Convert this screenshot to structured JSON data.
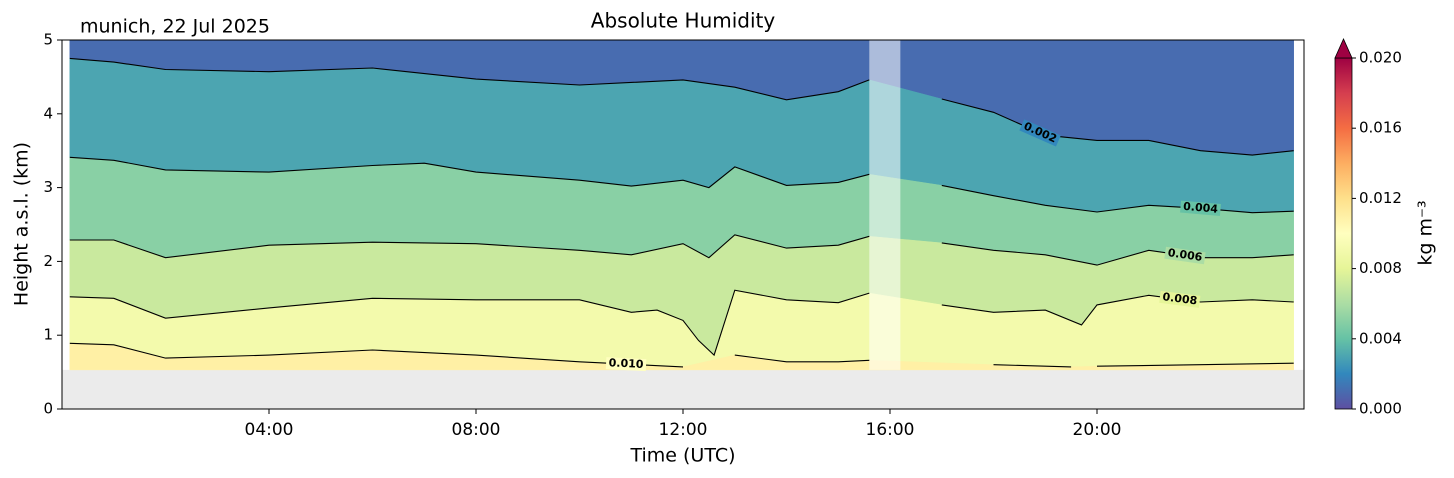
{
  "chart_data": {
    "type": "contour",
    "title": "Absolute Humidity",
    "location_label": "munich, 22 Jul 2025",
    "xlabel": "Time (UTC)",
    "ylabel": "Height a.s.l. (km)",
    "colorbar_label": "kg m⁻³",
    "xlim": [
      0,
      24
    ],
    "xticks": [
      {
        "value": 4,
        "label": "04:00"
      },
      {
        "value": 8,
        "label": "08:00"
      },
      {
        "value": 12,
        "label": "12:00"
      },
      {
        "value": 16,
        "label": "16:00"
      },
      {
        "value": 20,
        "label": "20:00"
      }
    ],
    "ylim": [
      0,
      5
    ],
    "yticks": [
      0,
      1,
      2,
      3,
      4,
      5
    ],
    "clim": [
      0,
      0.02
    ],
    "cticks": [
      {
        "value": 0,
        "label": "0.000"
      },
      {
        "value": 0.004,
        "label": "0.004"
      },
      {
        "value": 0.008,
        "label": "0.008"
      },
      {
        "value": 0.012,
        "label": "0.012"
      },
      {
        "value": 0.016,
        "label": "0.016"
      },
      {
        "value": 0.02,
        "label": "0.020"
      }
    ],
    "colormap": [
      "#5e4fa2",
      "#3288bd",
      "#66c2a5",
      "#abdda4",
      "#e6f598",
      "#ffffbf",
      "#fee08b",
      "#fdae61",
      "#f46d43",
      "#d53e4f",
      "#9e0142"
    ],
    "lowest_height": 0.53,
    "no_data_intervals": [
      [
        15.6,
        16.2
      ]
    ],
    "series": [
      {
        "level": {
          "value": 0.002,
          "label": "0.002"
        },
        "x": [
          0.15,
          1,
          2,
          4,
          6,
          8,
          10,
          12,
          13,
          14,
          15,
          15.6,
          16.2,
          17,
          18,
          19,
          20,
          21,
          22,
          23,
          23.8
        ],
        "values": [
          4.75,
          4.7,
          4.6,
          4.57,
          4.62,
          4.47,
          4.39,
          4.46,
          4.36,
          4.19,
          4.3,
          4.46,
          null,
          4.2,
          4.02,
          3.71,
          3.64,
          3.64,
          3.5,
          3.44,
          3.5
        ]
      },
      {
        "level": {
          "value": 0.004,
          "label": "0.004"
        },
        "x": [
          0.15,
          1,
          2,
          4,
          6,
          7,
          8,
          10,
          11,
          12,
          12.5,
          13,
          14,
          15,
          15.6,
          16.2,
          17,
          18,
          19,
          20,
          21,
          22,
          23,
          23.8
        ],
        "values": [
          3.41,
          3.37,
          3.24,
          3.21,
          3.3,
          3.33,
          3.21,
          3.1,
          3.02,
          3.1,
          3.0,
          3.28,
          3.03,
          3.07,
          3.18,
          null,
          3.03,
          2.89,
          2.76,
          2.67,
          2.76,
          2.72,
          2.66,
          2.68
        ]
      },
      {
        "level": {
          "value": 0.006,
          "label": "0.006"
        },
        "x": [
          0.15,
          1,
          2,
          4,
          6,
          8,
          10,
          11,
          12,
          12.5,
          13,
          14,
          15,
          15.6,
          16.2,
          17,
          18,
          19,
          20,
          21,
          22,
          23,
          23.8
        ],
        "values": [
          2.29,
          2.29,
          2.05,
          2.22,
          2.26,
          2.24,
          2.15,
          2.09,
          2.24,
          2.05,
          2.36,
          2.18,
          2.22,
          2.34,
          null,
          2.25,
          2.15,
          2.09,
          1.95,
          2.15,
          2.05,
          2.05,
          2.09
        ]
      },
      {
        "level": {
          "value": 0.008,
          "label": "0.008"
        },
        "x": [
          0.15,
          1,
          2,
          4,
          6,
          8,
          10,
          11,
          11.5,
          12,
          12.3,
          12.6,
          13,
          14,
          15,
          15.6,
          16.2,
          17,
          18,
          19,
          19.7,
          20,
          21,
          22,
          23,
          23.8
        ],
        "values": [
          1.52,
          1.5,
          1.23,
          1.37,
          1.5,
          1.48,
          1.48,
          1.31,
          1.34,
          1.2,
          0.93,
          0.73,
          1.61,
          1.48,
          1.44,
          1.57,
          null,
          1.41,
          1.31,
          1.34,
          1.14,
          1.41,
          1.54,
          1.45,
          1.48,
          1.45
        ]
      },
      {
        "level": {
          "value": 0.01,
          "label": "0.010"
        },
        "x": [
          0.15,
          1,
          2,
          4,
          6,
          8,
          10,
          12,
          12.5,
          13,
          14,
          15,
          15.6,
          16.2,
          18,
          19.5,
          19.8,
          20,
          22,
          23.8
        ],
        "values": [
          0.89,
          0.87,
          0.69,
          0.73,
          0.8,
          0.73,
          0.64,
          0.57,
          null,
          0.73,
          0.64,
          0.64,
          0.66,
          null,
          0.6,
          0.57,
          null,
          0.58,
          0.6,
          0.62
        ]
      }
    ]
  }
}
